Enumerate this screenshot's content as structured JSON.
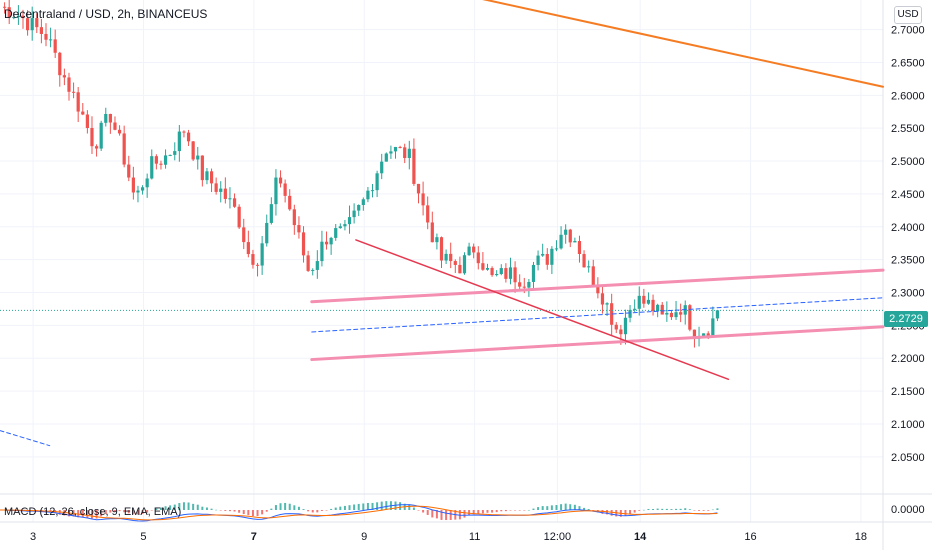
{
  "header": {
    "symbol_line": "Decentraland / USD, 2h, BINANCEUS",
    "currency": "USD"
  },
  "chart_data": {
    "type": "candlestick",
    "colors": {
      "up": "#26a69a",
      "down": "#ef5350",
      "orange_line": "#f57c23",
      "pink_channel": "#f48fb1",
      "red_trendline": "#e53950",
      "blue_dashed": "#2962ff",
      "last_price_line": "#26a69a"
    },
    "grid": true,
    "y_axis": {
      "range": [
        1.995,
        2.745
      ],
      "ticks": [
        "2.7000",
        "2.6500",
        "2.6000",
        "2.5500",
        "2.5000",
        "2.4500",
        "2.4000",
        "2.3500",
        "2.3000",
        "2.2500",
        "2.2000",
        "2.1500",
        "2.1000",
        "2.0500"
      ]
    },
    "x_axis": {
      "range_days": [
        2.4,
        18.4
      ],
      "ticks": [
        {
          "day": 3,
          "label": "3",
          "bold": false
        },
        {
          "day": 5,
          "label": "5",
          "bold": false
        },
        {
          "day": 7,
          "label": "7",
          "bold": true
        },
        {
          "day": 9,
          "label": "9",
          "bold": false
        },
        {
          "day": 11,
          "label": "11",
          "bold": false
        },
        {
          "day": 12.5,
          "label": "12:00",
          "bold": false
        },
        {
          "day": 14,
          "label": "14",
          "bold": true
        },
        {
          "day": 16,
          "label": "16",
          "bold": false
        },
        {
          "day": 18,
          "label": "18",
          "bold": false
        }
      ]
    },
    "last_price": {
      "label": "2.2729",
      "value": 2.2729
    },
    "anchors": [
      [
        2.4,
        2.735
      ],
      [
        2.7,
        2.725
      ],
      [
        3.0,
        2.705
      ],
      [
        3.25,
        2.69
      ],
      [
        3.55,
        2.63
      ],
      [
        3.85,
        2.58
      ],
      [
        4.1,
        2.525
      ],
      [
        4.4,
        2.57
      ],
      [
        4.6,
        2.52
      ],
      [
        4.85,
        2.44
      ],
      [
        5.1,
        2.49
      ],
      [
        5.45,
        2.51
      ],
      [
        5.75,
        2.55
      ],
      [
        6.05,
        2.48
      ],
      [
        6.4,
        2.455
      ],
      [
        6.7,
        2.42
      ],
      [
        6.9,
        2.36
      ],
      [
        7.05,
        2.35
      ],
      [
        7.25,
        2.405
      ],
      [
        7.45,
        2.48
      ],
      [
        7.75,
        2.4
      ],
      [
        8.0,
        2.33
      ],
      [
        8.35,
        2.39
      ],
      [
        8.65,
        2.39
      ],
      [
        9.0,
        2.44
      ],
      [
        9.4,
        2.52
      ],
      [
        9.8,
        2.51
      ],
      [
        10.1,
        2.42
      ],
      [
        10.4,
        2.35
      ],
      [
        10.75,
        2.34
      ],
      [
        11.0,
        2.37
      ],
      [
        11.3,
        2.32
      ],
      [
        11.6,
        2.33
      ],
      [
        11.9,
        2.32
      ],
      [
        12.1,
        2.345
      ],
      [
        12.3,
        2.35
      ],
      [
        12.6,
        2.4
      ],
      [
        12.85,
        2.38
      ],
      [
        13.0,
        2.34
      ],
      [
        13.3,
        2.3
      ],
      [
        13.6,
        2.24
      ],
      [
        13.9,
        2.29
      ],
      [
        14.2,
        2.28
      ],
      [
        14.4,
        2.26
      ],
      [
        14.75,
        2.28
      ],
      [
        15.0,
        2.24
      ],
      [
        15.2,
        2.245
      ],
      [
        15.45,
        2.272
      ]
    ],
    "overlays": [
      {
        "name": "orange-trendline",
        "from": [
          10.95,
          2.75
        ],
        "to": [
          18.4,
          2.613
        ]
      },
      {
        "name": "pink-channel-top",
        "from": [
          8.05,
          2.286
        ],
        "to": [
          18.4,
          2.334
        ]
      },
      {
        "name": "pink-channel-bottom",
        "from": [
          8.05,
          2.198
        ],
        "to": [
          18.4,
          2.248
        ]
      },
      {
        "name": "red-trendline",
        "from": [
          8.85,
          2.38
        ],
        "to": [
          15.6,
          2.168
        ]
      },
      {
        "name": "blue-dashed-line",
        "from": [
          8.05,
          2.24
        ],
        "to": [
          18.4,
          2.292
        ]
      },
      {
        "name": "blue-dashed-upper-left",
        "from": [
          2.4,
          2.09
        ],
        "to": [
          3.3,
          2.067
        ]
      }
    ],
    "macd": {
      "label": "MACD (12, 26, close, 9, EMA, EMA)",
      "y_ticks": [
        "0.0000"
      ]
    }
  }
}
